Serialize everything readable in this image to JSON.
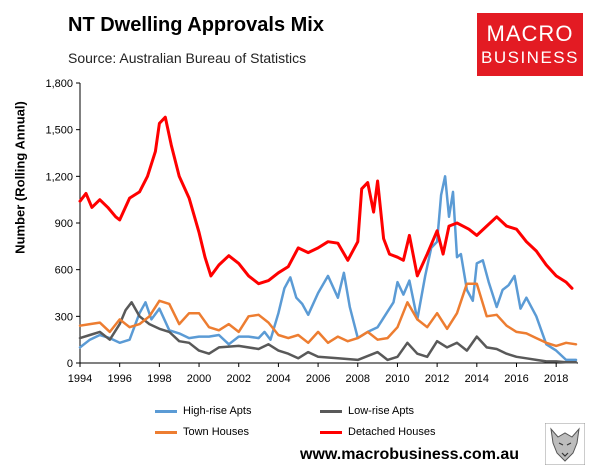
{
  "header": {
    "title": "NT Dwelling Approvals Mix",
    "subtitle": "Source: Australian Bureau of Statistics"
  },
  "logo": {
    "line1": "MACRO",
    "line2": "BUSINESS"
  },
  "footer": {
    "url": "www.macrobusiness.com.au"
  },
  "colors": {
    "highrise": "#5b9bd5",
    "lowrise": "#595959",
    "town": "#ed7d31",
    "detached": "#ff0000",
    "brand": "#e31b23"
  },
  "chart_data": {
    "type": "line",
    "ylabel": "Number (Rolling Annual)",
    "xlim": [
      1994,
      2019.1
    ],
    "ylim": [
      0,
      1800
    ],
    "yticks": [
      0,
      300,
      600,
      900,
      1200,
      1500,
      1800
    ],
    "ytick_labels": [
      "0",
      "300",
      "600",
      "900",
      "1,200",
      "1,500",
      "1,800"
    ],
    "xticks": [
      1994,
      1996,
      1998,
      2000,
      2002,
      2004,
      2006,
      2008,
      2010,
      2012,
      2014,
      2016,
      2018
    ],
    "xtick_labels": [
      "1994",
      "1996",
      "1998",
      "2000",
      "2002",
      "2004",
      "2006",
      "2008",
      "2010",
      "2012",
      "2014",
      "2016",
      "2018"
    ],
    "grid": false,
    "legend_position": "bottom",
    "series": [
      {
        "name": "High-rise Apts",
        "color": "#5b9bd5",
        "x": [
          1994,
          1994.5,
          1995,
          1995.5,
          1996,
          1996.5,
          1997,
          1997.3,
          1997.6,
          1998,
          1998.5,
          1999,
          1999.5,
          2000,
          2000.5,
          2001,
          2001.5,
          2002,
          2002.5,
          2003,
          2003.3,
          2003.6,
          2004,
          2004.3,
          2004.6,
          2004.9,
          2005.2,
          2005.5,
          2006,
          2006.5,
          2007,
          2007.3,
          2007.6,
          2008,
          2008.5,
          2009,
          2009.5,
          2009.8,
          2010,
          2010.3,
          2010.6,
          2011,
          2011.4,
          2011.7,
          2012,
          2012.2,
          2012.4,
          2012.6,
          2012.8,
          2013,
          2013.2,
          2013.5,
          2013.8,
          2014,
          2014.3,
          2014.6,
          2015,
          2015.3,
          2015.6,
          2015.9,
          2016.2,
          2016.5,
          2017,
          2017.5,
          2018,
          2018.5,
          2019
        ],
        "y": [
          100,
          150,
          180,
          160,
          130,
          150,
          320,
          390,
          280,
          350,
          210,
          190,
          160,
          170,
          170,
          180,
          120,
          170,
          170,
          160,
          200,
          150,
          320,
          480,
          550,
          420,
          380,
          310,
          450,
          560,
          420,
          580,
          360,
          160,
          200,
          230,
          330,
          390,
          520,
          440,
          530,
          280,
          560,
          740,
          780,
          1080,
          1200,
          940,
          1100,
          680,
          700,
          470,
          400,
          640,
          660,
          520,
          360,
          470,
          500,
          560,
          350,
          420,
          300,
          120,
          80,
          20,
          20
        ]
      },
      {
        "name": "Low-rise Apts",
        "color": "#595959",
        "x": [
          1994,
          1994.5,
          1995,
          1995.5,
          1996,
          1996.3,
          1996.6,
          1997,
          1997.5,
          1998,
          1998.5,
          1999,
          1999.5,
          2000,
          2000.5,
          2001,
          2002,
          2003,
          2003.5,
          2004,
          2004.5,
          2005,
          2005.5,
          2006,
          2007,
          2008,
          2009,
          2009.5,
          2010,
          2010.5,
          2011,
          2011.5,
          2012,
          2012.5,
          2013,
          2013.5,
          2014,
          2014.5,
          2015,
          2015.5,
          2016,
          2016.5,
          2017,
          2017.5,
          2018,
          2018.5,
          2019
        ],
        "y": [
          160,
          180,
          200,
          150,
          250,
          340,
          390,
          300,
          250,
          220,
          200,
          140,
          130,
          80,
          60,
          100,
          110,
          90,
          120,
          80,
          60,
          30,
          70,
          40,
          30,
          20,
          70,
          20,
          40,
          130,
          60,
          40,
          140,
          100,
          130,
          80,
          170,
          100,
          90,
          60,
          40,
          30,
          20,
          10,
          10,
          5,
          5
        ]
      },
      {
        "name": "Town Houses",
        "color": "#ed7d31",
        "x": [
          1994,
          1994.5,
          1995,
          1995.5,
          1996,
          1996.5,
          1997,
          1997.5,
          1998,
          1998.5,
          1999,
          1999.5,
          2000,
          2000.5,
          2001,
          2001.5,
          2002,
          2002.5,
          2003,
          2003.5,
          2004,
          2004.5,
          2005,
          2005.5,
          2006,
          2006.5,
          2007,
          2007.5,
          2008,
          2008.5,
          2009,
          2009.5,
          2010,
          2010.5,
          2011,
          2011.5,
          2012,
          2012.5,
          2013,
          2013.5,
          2014,
          2014.5,
          2015,
          2015.5,
          2016,
          2016.5,
          2017,
          2017.5,
          2018,
          2018.5,
          2019
        ],
        "y": [
          240,
          250,
          260,
          200,
          280,
          230,
          250,
          300,
          400,
          380,
          250,
          320,
          320,
          230,
          210,
          250,
          200,
          300,
          310,
          260,
          180,
          160,
          180,
          130,
          200,
          130,
          170,
          140,
          160,
          200,
          150,
          160,
          230,
          390,
          280,
          230,
          320,
          220,
          320,
          510,
          510,
          300,
          310,
          240,
          200,
          190,
          160,
          130,
          110,
          130,
          120
        ]
      },
      {
        "name": "Detached Houses",
        "color": "#ff0000",
        "x": [
          1994,
          1994.3,
          1994.6,
          1995,
          1995.4,
          1995.8,
          1996,
          1996.5,
          1997,
          1997.4,
          1997.8,
          1998,
          1998.3,
          1998.6,
          1999,
          1999.5,
          2000,
          2000.3,
          2000.6,
          2001,
          2001.5,
          2002,
          2002.5,
          2003,
          2003.5,
          2004,
          2004.5,
          2005,
          2005.5,
          2006,
          2006.5,
          2007,
          2007.5,
          2008,
          2008.2,
          2008.5,
          2008.8,
          2009,
          2009.3,
          2009.6,
          2010,
          2010.3,
          2010.6,
          2011,
          2011.5,
          2012,
          2012.3,
          2012.6,
          2013,
          2013.3,
          2013.6,
          2014,
          2014.5,
          2015,
          2015.5,
          2016,
          2016.5,
          2017,
          2017.5,
          2018,
          2018.5,
          2018.8
        ],
        "y": [
          1040,
          1090,
          1000,
          1050,
          1000,
          940,
          920,
          1060,
          1100,
          1200,
          1360,
          1540,
          1580,
          1400,
          1200,
          1060,
          840,
          680,
          560,
          630,
          690,
          640,
          560,
          510,
          530,
          580,
          620,
          740,
          710,
          740,
          780,
          770,
          660,
          780,
          1120,
          1160,
          970,
          1170,
          800,
          700,
          680,
          660,
          820,
          560,
          700,
          850,
          700,
          880,
          900,
          880,
          860,
          820,
          880,
          940,
          880,
          860,
          780,
          720,
          630,
          560,
          520,
          480
        ]
      }
    ]
  },
  "legend": [
    {
      "name": "High-rise Apts",
      "color": "#5b9bd5"
    },
    {
      "name": "Low-rise Apts",
      "color": "#595959"
    },
    {
      "name": "Town Houses",
      "color": "#ed7d31"
    },
    {
      "name": "Detached Houses",
      "color": "#ff0000"
    }
  ]
}
